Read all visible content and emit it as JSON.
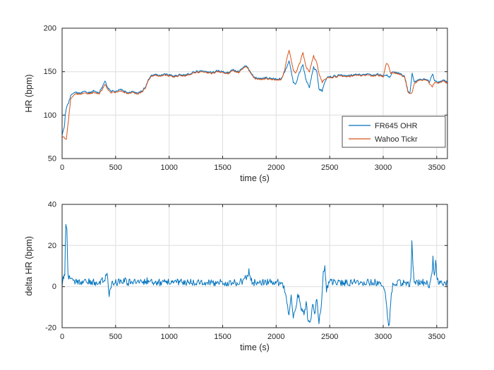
{
  "figure": {
    "background": "#ffffff"
  },
  "colors": {
    "axis": "#262626",
    "grid": "#dedede",
    "series_blue": "#0072BD",
    "series_orange": "#D95319",
    "legend_bg": "#ffffff"
  },
  "chart_data": [
    {
      "type": "line",
      "title": "",
      "xlabel": "time (s)",
      "ylabel": "HR (bpm)",
      "xlim": [
        0,
        3600
      ],
      "ylim": [
        50,
        200
      ],
      "xticks": [
        0,
        500,
        1000,
        1500,
        2000,
        2500,
        3000,
        3500
      ],
      "yticks": [
        50,
        100,
        150,
        200
      ],
      "grid": true,
      "legend": {
        "position": "southeast",
        "entries": [
          "FR645 OHR",
          "Wahoo Tickr"
        ]
      },
      "series": [
        {
          "name": "FR645 OHR",
          "color": "#0072BD",
          "jitter": 1.1,
          "x": [
            0,
            20,
            30,
            40,
            60,
            80,
            120,
            160,
            200,
            250,
            300,
            340,
            380,
            400,
            420,
            450,
            500,
            550,
            600,
            650,
            700,
            750,
            780,
            800,
            830,
            860,
            900,
            950,
            1000,
            1050,
            1100,
            1150,
            1200,
            1250,
            1300,
            1350,
            1400,
            1450,
            1500,
            1550,
            1600,
            1650,
            1700,
            1720,
            1750,
            1800,
            1850,
            1900,
            1950,
            2000,
            2050,
            2080,
            2100,
            2120,
            2160,
            2180,
            2220,
            2250,
            2280,
            2310,
            2350,
            2380,
            2400,
            2430,
            2460,
            2480,
            2500,
            2550,
            2600,
            2650,
            2700,
            2750,
            2800,
            2850,
            2900,
            2950,
            3000,
            3030,
            3060,
            3080,
            3100,
            3150,
            3200,
            3230,
            3250,
            3270,
            3290,
            3320,
            3350,
            3400,
            3430,
            3460,
            3480,
            3520,
            3560,
            3600
          ],
          "y": [
            78,
            85,
            100,
            108,
            114,
            122,
            126,
            125,
            127,
            126,
            128,
            125,
            133,
            140,
            133,
            128,
            127,
            130,
            126,
            127,
            125,
            128,
            133,
            140,
            145,
            147,
            146,
            147,
            146,
            145,
            147,
            146,
            148,
            150,
            151,
            150,
            149,
            151,
            150,
            149,
            152,
            150,
            155,
            157,
            152,
            143,
            142,
            143,
            142,
            141,
            142,
            150,
            155,
            163,
            138,
            135,
            150,
            158,
            140,
            132,
            155,
            150,
            130,
            128,
            140,
            145,
            144,
            145,
            146,
            145,
            146,
            147,
            146,
            147,
            146,
            147,
            145,
            146,
            144,
            148,
            150,
            148,
            145,
            128,
            126,
            148,
            138,
            140,
            141,
            142,
            138,
            148,
            140,
            138,
            140,
            138
          ]
        },
        {
          "name": "Wahoo Tickr",
          "color": "#D95319",
          "jitter": 0.9,
          "x": [
            0,
            20,
            40,
            60,
            80,
            120,
            160,
            200,
            250,
            300,
            340,
            380,
            400,
            420,
            450,
            500,
            550,
            600,
            650,
            700,
            750,
            780,
            800,
            830,
            860,
            900,
            950,
            1000,
            1050,
            1100,
            1150,
            1200,
            1250,
            1300,
            1350,
            1400,
            1450,
            1500,
            1550,
            1600,
            1650,
            1700,
            1720,
            1750,
            1800,
            1850,
            1900,
            1950,
            2000,
            2050,
            2080,
            2100,
            2120,
            2160,
            2180,
            2220,
            2250,
            2280,
            2310,
            2350,
            2380,
            2400,
            2430,
            2460,
            2480,
            2500,
            2550,
            2600,
            2650,
            2700,
            2750,
            2800,
            2850,
            2900,
            2950,
            3000,
            3030,
            3050,
            3070,
            3100,
            3150,
            3200,
            3230,
            3250,
            3270,
            3290,
            3320,
            3350,
            3400,
            3430,
            3460,
            3480,
            3520,
            3560,
            3600
          ],
          "y": [
            75,
            74,
            72,
            95,
            118,
            124,
            124,
            125,
            125,
            126,
            124,
            130,
            136,
            131,
            126,
            126,
            128,
            125,
            126,
            124,
            127,
            132,
            139,
            144,
            146,
            145,
            146,
            145,
            144,
            146,
            145,
            147,
            149,
            150,
            149,
            148,
            150,
            149,
            148,
            151,
            149,
            154,
            156,
            151,
            142,
            141,
            142,
            141,
            140,
            141,
            152,
            165,
            175,
            152,
            148,
            160,
            172,
            155,
            150,
            168,
            160,
            148,
            138,
            142,
            144,
            143,
            144,
            145,
            144,
            145,
            146,
            145,
            146,
            145,
            146,
            144,
            160,
            157,
            148,
            149,
            147,
            144,
            127,
            125,
            126,
            136,
            139,
            140,
            141,
            137,
            133,
            138,
            137,
            139,
            137
          ]
        }
      ]
    },
    {
      "type": "line",
      "title": "",
      "xlabel": "time (s)",
      "ylabel": "delta HR (bpm)",
      "xlim": [
        0,
        3600
      ],
      "ylim": [
        -20,
        40
      ],
      "xticks": [
        0,
        500,
        1000,
        1500,
        2000,
        2500,
        3000,
        3500
      ],
      "yticks": [
        -20,
        0,
        20,
        40
      ],
      "grid": true,
      "legend": null,
      "series": [
        {
          "name": "delta HR",
          "color": "#0072BD",
          "jitter": 1.7,
          "x": [
            0,
            15,
            25,
            35,
            45,
            55,
            80,
            120,
            160,
            200,
            250,
            300,
            350,
            400,
            420,
            440,
            470,
            520,
            570,
            620,
            680,
            740,
            800,
            860,
            920,
            980,
            1040,
            1100,
            1160,
            1220,
            1280,
            1340,
            1400,
            1460,
            1520,
            1580,
            1640,
            1700,
            1745,
            1760,
            1775,
            1830,
            1890,
            1950,
            2010,
            2060,
            2080,
            2100,
            2120,
            2140,
            2160,
            2180,
            2200,
            2230,
            2260,
            2280,
            2300,
            2320,
            2340,
            2360,
            2380,
            2400,
            2420,
            2440,
            2455,
            2470,
            2490,
            2550,
            2610,
            2670,
            2730,
            2790,
            2850,
            2910,
            2970,
            3000,
            3020,
            3040,
            3055,
            3070,
            3090,
            3140,
            3190,
            3240,
            3258,
            3268,
            3278,
            3290,
            3340,
            3390,
            3430,
            3455,
            3465,
            3478,
            3490,
            3505,
            3550,
            3600
          ],
          "y": [
            2,
            4,
            6,
            30,
            27,
            5,
            3,
            2,
            2,
            2,
            3,
            2,
            2,
            4,
            7,
            -4,
            2,
            2,
            3,
            2,
            2,
            2,
            3,
            2,
            2,
            2,
            2,
            2,
            2,
            2,
            2,
            2,
            2,
            2,
            2,
            2,
            2,
            3,
            7,
            5,
            2,
            2,
            2,
            2,
            2,
            2,
            -2,
            -8,
            -13,
            -5,
            -14,
            -12,
            -3,
            -10,
            -14,
            -8,
            -17,
            -18,
            -8,
            -13,
            -6,
            -18,
            -10,
            8,
            10,
            -2,
            2,
            2,
            2,
            2,
            2,
            2,
            2,
            2,
            2,
            1,
            -5,
            -15,
            -20,
            -8,
            2,
            2,
            2,
            1,
            3,
            22,
            10,
            2,
            2,
            2,
            1,
            5,
            15,
            4,
            12,
            3,
            2,
            2
          ]
        }
      ]
    }
  ]
}
